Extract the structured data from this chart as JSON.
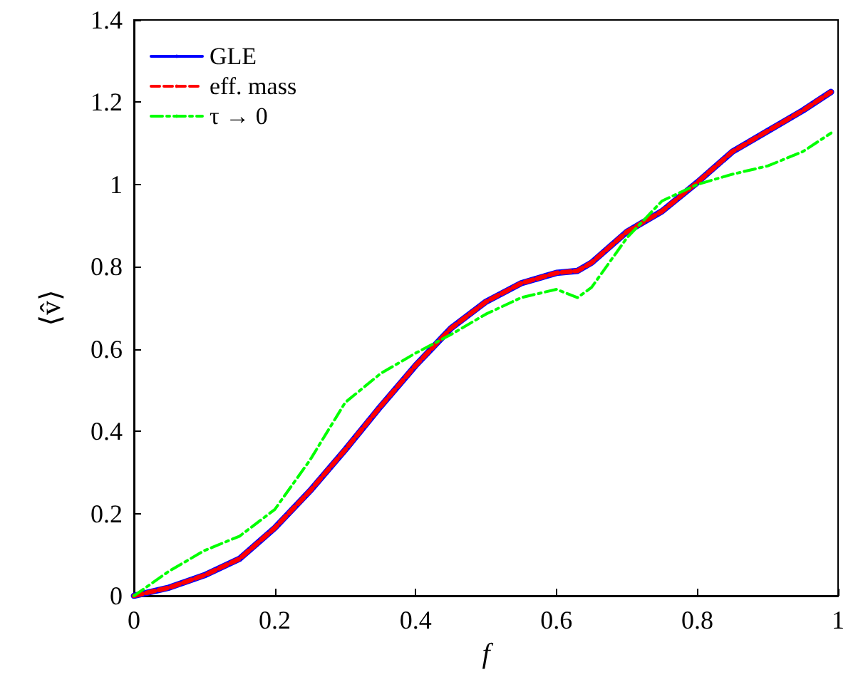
{
  "chart_data": {
    "type": "line",
    "xlabel": "f",
    "ylabel": "⟨v̂⟩",
    "x": [
      0,
      0.05,
      0.1,
      0.15,
      0.2,
      0.25,
      0.3,
      0.35,
      0.4,
      0.45,
      0.5,
      0.55,
      0.6,
      0.63,
      0.65,
      0.7,
      0.75,
      0.8,
      0.85,
      0.9,
      0.95,
      0.99
    ],
    "series": [
      {
        "name": "GLE",
        "color": "#0000ff",
        "line_style": "solid",
        "values": [
          0,
          0.02,
          0.05,
          0.09,
          0.165,
          0.255,
          0.355,
          0.46,
          0.56,
          0.65,
          0.715,
          0.76,
          0.785,
          0.79,
          0.81,
          0.885,
          0.935,
          1.005,
          1.08,
          1.13,
          1.18,
          1.225
        ]
      },
      {
        "name": "eff. mass",
        "color": "#ff0000",
        "line_style": "dashed",
        "values": [
          0,
          0.02,
          0.05,
          0.09,
          0.165,
          0.255,
          0.355,
          0.46,
          0.56,
          0.65,
          0.715,
          0.76,
          0.785,
          0.79,
          0.81,
          0.885,
          0.935,
          1.005,
          1.08,
          1.13,
          1.18,
          1.225
        ]
      },
      {
        "name": "τ → 0",
        "color": "#00ff00",
        "line_style": "dashdot",
        "values": [
          0,
          0.06,
          0.11,
          0.145,
          0.21,
          0.33,
          0.47,
          0.54,
          0.59,
          0.635,
          0.685,
          0.725,
          0.745,
          0.725,
          0.75,
          0.87,
          0.96,
          1.0,
          1.025,
          1.045,
          1.08,
          1.125
        ]
      }
    ],
    "xlim": [
      0,
      1
    ],
    "xticks": [
      0,
      0.2,
      0.4,
      0.6,
      0.8,
      1
    ],
    "ylim": [
      0,
      1.4
    ],
    "yticks": [
      0,
      0.2,
      0.4,
      0.6,
      0.8,
      1,
      1.2,
      1.4
    ],
    "grid": false,
    "legend": "top left",
    "marker": "none"
  }
}
